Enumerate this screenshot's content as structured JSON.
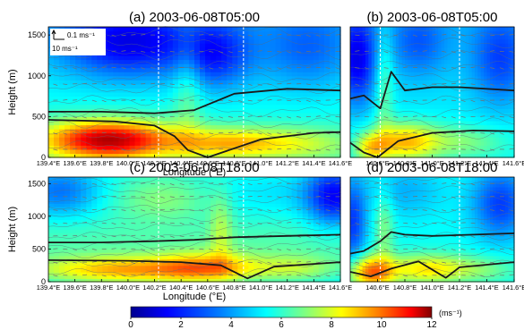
{
  "figure": {
    "colorbar": {
      "ticks": [
        "0",
        "2",
        "4",
        "6",
        "8",
        "10",
        "12"
      ],
      "min": 0,
      "max": 12,
      "unit": "(ms⁻¹)",
      "colors": [
        "#00008f",
        "#0000ff",
        "#0080ff",
        "#00ffff",
        "#80ff80",
        "#ffff00",
        "#ff8000",
        "#ff0000",
        "#800000"
      ]
    },
    "vector_key": {
      "vertical_label": "0.1 ms⁻¹",
      "horizontal_label": "10 ms⁻¹"
    }
  },
  "chart_data": [
    {
      "type": "heatmap",
      "id": "a",
      "title": "(a)  2003-06-08T05:00",
      "xlabel": "Longitude (°E)",
      "ylabel": "Height (m)",
      "xlim": [
        139.4,
        141.6
      ],
      "ylim": [
        0,
        1600
      ],
      "xticks": [
        "139.4°E",
        "139.6°E",
        "139.8°E",
        "140.0°E",
        "140.2°E",
        "140.4°E",
        "140.6°E",
        "140.8°E",
        "141.0°E",
        "141.2°E",
        "141.4°E",
        "141.6°E"
      ],
      "yticks": [
        "0",
        "500",
        "1000",
        "1500"
      ],
      "upper_line": [
        [
          139.4,
          560
        ],
        [
          139.8,
          560
        ],
        [
          140.2,
          540
        ],
        [
          140.5,
          580
        ],
        [
          140.8,
          780
        ],
        [
          141.2,
          840
        ],
        [
          141.6,
          820
        ]
      ],
      "lower_line": [
        [
          139.4,
          460
        ],
        [
          139.9,
          440
        ],
        [
          140.2,
          390
        ],
        [
          140.35,
          260
        ],
        [
          140.45,
          90
        ],
        [
          140.6,
          0
        ],
        [
          141.0,
          220
        ],
        [
          141.4,
          300
        ],
        [
          141.6,
          310
        ]
      ]
    },
    {
      "type": "heatmap",
      "id": "b",
      "title": "(b)  2003-06-08T05:00",
      "xlabel": "",
      "ylabel": "",
      "xlim": [
        140.4,
        141.6
      ],
      "ylim": [
        0,
        1600
      ],
      "xticks": [
        "140.6°E",
        "140.8°E",
        "141.0°E",
        "141.2°E",
        "141.4°E",
        "141.6°E"
      ],
      "yticks": [],
      "upper_line": [
        [
          140.4,
          720
        ],
        [
          140.5,
          760
        ],
        [
          140.62,
          600
        ],
        [
          140.7,
          1050
        ],
        [
          140.8,
          820
        ],
        [
          141.0,
          860
        ],
        [
          141.2,
          860
        ],
        [
          141.6,
          820
        ]
      ],
      "lower_line": [
        [
          140.4,
          180
        ],
        [
          140.5,
          60
        ],
        [
          140.6,
          0
        ],
        [
          140.75,
          200
        ],
        [
          141.0,
          300
        ],
        [
          141.3,
          330
        ],
        [
          141.6,
          320
        ]
      ]
    },
    {
      "type": "heatmap",
      "id": "c",
      "title": "(c)  2003-06-08T18:00",
      "xlabel": "Longitude (°E)",
      "ylabel": "Height (m)",
      "xlim": [
        139.4,
        141.6
      ],
      "ylim": [
        0,
        1600
      ],
      "xticks": [
        "139.4°E",
        "139.6°E",
        "139.8°E",
        "140.0°E",
        "140.2°E",
        "140.4°E",
        "140.6°E",
        "140.8°E",
        "141.0°E",
        "141.2°E",
        "141.4°E",
        "141.6°E"
      ],
      "yticks": [
        "0",
        "500",
        "1000",
        "1500"
      ],
      "upper_line": [
        [
          139.4,
          600
        ],
        [
          139.8,
          600
        ],
        [
          140.2,
          620
        ],
        [
          140.5,
          640
        ],
        [
          140.8,
          680
        ],
        [
          141.2,
          700
        ],
        [
          141.6,
          720
        ]
      ],
      "lower_line": [
        [
          139.4,
          330
        ],
        [
          140.0,
          320
        ],
        [
          140.4,
          300
        ],
        [
          140.7,
          250
        ],
        [
          140.9,
          50
        ],
        [
          141.1,
          230
        ],
        [
          141.6,
          300
        ]
      ]
    },
    {
      "type": "heatmap",
      "id": "d",
      "title": "(d)  2003-06-08T18:00",
      "xlabel": "",
      "ylabel": "",
      "xlim": [
        140.4,
        141.6
      ],
      "ylim": [
        0,
        1600
      ],
      "xticks": [
        "140.6°E",
        "140.8°E",
        "141.0°E",
        "141.2°E",
        "141.4°E",
        "141.6°E"
      ],
      "yticks": [],
      "upper_line": [
        [
          140.4,
          430
        ],
        [
          140.5,
          470
        ],
        [
          140.62,
          620
        ],
        [
          140.7,
          760
        ],
        [
          140.8,
          720
        ],
        [
          141.0,
          700
        ],
        [
          141.3,
          720
        ],
        [
          141.6,
          740
        ]
      ],
      "lower_line": [
        [
          140.4,
          150
        ],
        [
          140.55,
          80
        ],
        [
          140.7,
          200
        ],
        [
          140.9,
          310
        ],
        [
          141.1,
          60
        ],
        [
          141.2,
          220
        ],
        [
          141.6,
          300
        ]
      ]
    }
  ]
}
